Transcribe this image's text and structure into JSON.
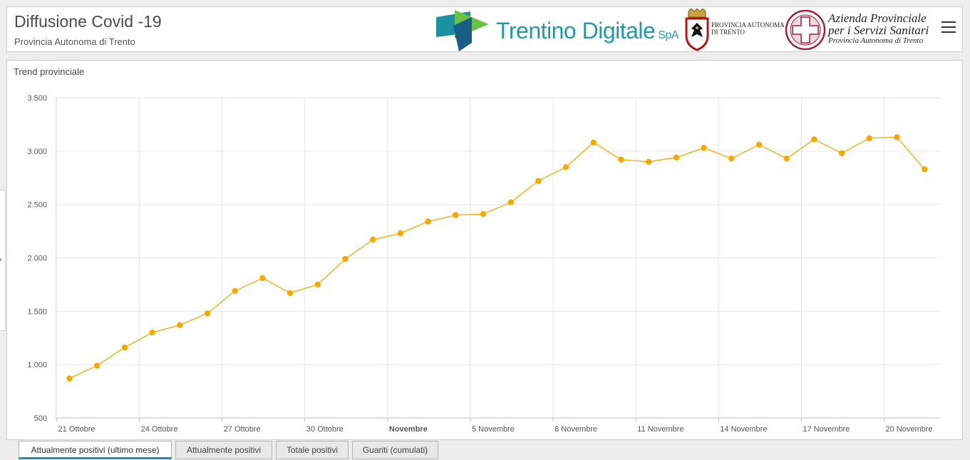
{
  "header": {
    "title": "Diffusione Covid -19",
    "subtitle": "Provincia Autonoma di Trento",
    "logos": {
      "trentino_digitale": {
        "name": "Trentino Digitale",
        "suffix": "SpA"
      },
      "provincia": {
        "line1": "PROVINCIA AUTONOMA",
        "line2": "DI TRENTO"
      },
      "apss": {
        "line1": "Azienda Provinciale",
        "line2": "per i Servizi Sanitari",
        "line3": "Provincia Autonoma di Trento"
      }
    },
    "menu_icon": "hamburger-menu-icon"
  },
  "side_toggle_icon": "chevron-right-icon",
  "panel": {
    "title": "Trend provinciale"
  },
  "chart_data": {
    "type": "line",
    "title": "",
    "xlabel": "",
    "ylabel": "",
    "ylim": [
      500,
      3500
    ],
    "yticks": [
      500,
      1000,
      1500,
      2000,
      2500,
      3000,
      3500
    ],
    "ytick_labels": [
      "500",
      "1.000",
      "1.500",
      "2.000",
      "2.500",
      "3.000",
      "3.500"
    ],
    "xtick_labels": [
      "21 Ottobre",
      "24 Ottobre",
      "27 Ottobre",
      "30 Ottobre",
      "Novembre",
      "5 Novembre",
      "8 Novembre",
      "11 Novembre",
      "14 Novembre",
      "17 Novembre",
      "20 Novembre"
    ],
    "bold_xtick": "Novembre",
    "grid": true,
    "line_color": "#f5a800",
    "x": [
      "2020-10-21",
      "2020-10-22",
      "2020-10-23",
      "2020-10-24",
      "2020-10-25",
      "2020-10-26",
      "2020-10-27",
      "2020-10-28",
      "2020-10-29",
      "2020-10-30",
      "2020-10-31",
      "2020-11-01",
      "2020-11-02",
      "2020-11-03",
      "2020-11-04",
      "2020-11-05",
      "2020-11-06",
      "2020-11-07",
      "2020-11-08",
      "2020-11-09",
      "2020-11-10",
      "2020-11-11",
      "2020-11-12",
      "2020-11-13",
      "2020-11-14",
      "2020-11-15",
      "2020-11-16",
      "2020-11-17",
      "2020-11-18",
      "2020-11-19",
      "2020-11-20",
      "2020-11-21"
    ],
    "values": [
      870,
      990,
      1160,
      1300,
      1370,
      1480,
      1690,
      1810,
      1670,
      1750,
      1990,
      2170,
      2230,
      2340,
      2400,
      2410,
      2520,
      2720,
      2850,
      3080,
      2920,
      2900,
      2940,
      3030,
      2930,
      3060,
      2930,
      3110,
      2980,
      3120,
      3130,
      2830
    ]
  },
  "tabs": [
    {
      "label": "Attualmente positivi (ultimo mese)",
      "active": true
    },
    {
      "label": "Attualmente positivi",
      "active": false
    },
    {
      "label": "Totale positivi",
      "active": false
    },
    {
      "label": "Guariti (cumulati)",
      "active": false
    }
  ]
}
